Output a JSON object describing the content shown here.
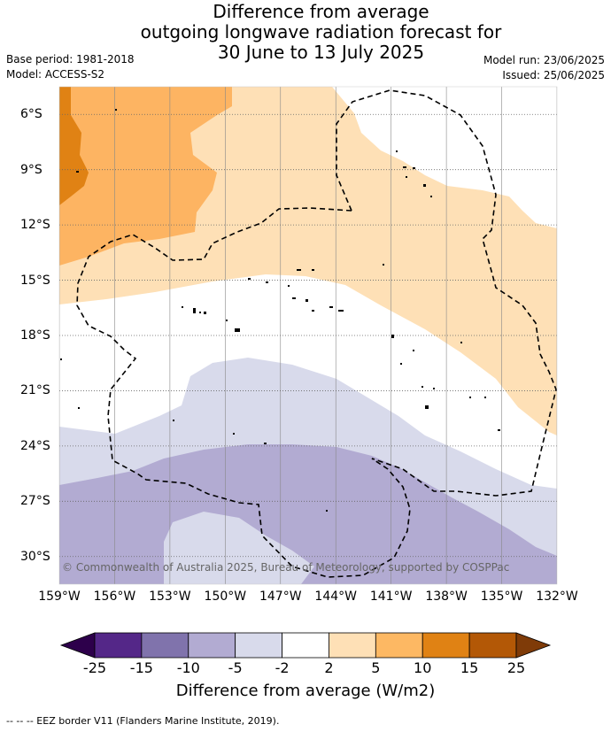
{
  "title": {
    "line1": "Difference from average",
    "line2": "outgoing longwave radiation forecast for",
    "line3": "30 June to 13 July 2025"
  },
  "meta": {
    "base_period": "Base period: 1981-2018",
    "model": "Model: ACCESS-S2",
    "model_run": "Model run: 23/06/2025",
    "issued": "Issued: 25/06/2025"
  },
  "map": {
    "copyright": "© Commonwealth of Australia 2025, Bureau of Meteorology, supported by COSPPac",
    "x_ticks": [
      "159°W",
      "156°W",
      "153°W",
      "150°W",
      "147°W",
      "144°W",
      "141°W",
      "138°W",
      "135°W",
      "132°W"
    ],
    "y_ticks": [
      "6°S",
      "9°S",
      "12°S",
      "15°S",
      "18°S",
      "21°S",
      "24°S",
      "27°S",
      "30°S"
    ],
    "lon_range": [
      -159,
      -132
    ],
    "lat_range": [
      -31.5,
      -4.5
    ],
    "colors": {
      "band_5_10": "#fdb462",
      "band_10_15": "#e08214",
      "band_2_5": "#fee0b6",
      "band_neutral": "#ffffff",
      "band_m5_m2": "#d8daeb",
      "band_m10_m5": "#b2abd2"
    }
  },
  "colorbar": {
    "ticks": [
      "-25",
      "-15",
      "-10",
      "-5",
      "-2",
      "2",
      "5",
      "10",
      "15",
      "25"
    ],
    "colors": [
      "#2d004b",
      "#542788",
      "#8073ac",
      "#b2abd2",
      "#d8daeb",
      "#ffffff",
      "#fee0b6",
      "#fdb863",
      "#e08214",
      "#b35806",
      "#7f3b08"
    ],
    "label": "Difference from average (W/m2)"
  },
  "footer": "-- -- -- EEZ border V11 (Flanders Marine Institute, 2019)."
}
